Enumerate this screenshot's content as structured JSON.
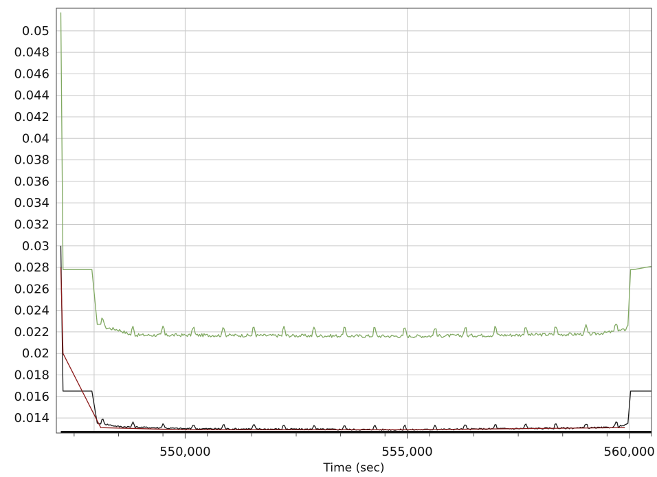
{
  "chart_data": {
    "type": "line",
    "xlabel": "Time (sec)",
    "ylabel": "",
    "xlim": [
      547100,
      560500
    ],
    "ylim": [
      0.0126,
      0.0521
    ],
    "x_ticks": [
      550000,
      555000,
      560000
    ],
    "x_tick_labels": [
      "550,000",
      "555,000",
      "560,000"
    ],
    "x_gridlines": [
      547950,
      550000,
      555000,
      560000
    ],
    "y_ticks": [
      0.014,
      0.016,
      0.018,
      0.02,
      0.022,
      0.024,
      0.026,
      0.028,
      0.03,
      0.032,
      0.034,
      0.036,
      0.038,
      0.04,
      0.042,
      0.044,
      0.046,
      0.048,
      0.05
    ],
    "y_tick_labels": [
      "0.014",
      "0.016",
      "0.018",
      "0.02",
      "0.022",
      "0.024",
      "0.026",
      "0.028",
      "0.03",
      "0.032",
      "0.034",
      "0.036",
      "0.038",
      "0.04",
      "0.042",
      "0.044",
      "0.046",
      "0.048",
      "0.05"
    ],
    "grid": true,
    "colors": {
      "upper": "#7fa860",
      "lower": "#1a1a1a",
      "lower_alt": "#8b1a1a",
      "bottom": "#000000",
      "grid": "#c8c8c8",
      "frame": "#444444"
    },
    "series": [
      {
        "color": "#7fa860",
        "x": [
          547200,
          547250,
          547400,
          547900,
          548020,
          548100,
          548200,
          548500,
          548800,
          550000,
          555000,
          559200,
          559600,
          559900,
          559970,
          560030,
          560100,
          560500
        ],
        "y": [
          0.0517,
          0.0278,
          0.0278,
          0.0278,
          0.0227,
          0.0226,
          0.0224,
          0.0222,
          0.0217,
          0.0217,
          0.0216,
          0.0218,
          0.022,
          0.0222,
          0.0226,
          0.0278,
          0.0278,
          0.0281
        ],
        "noise": {
          "x_start": 548100,
          "x_end": 559950,
          "amplitude": 0.0003,
          "bumps_every": 680,
          "bump_height": 0.0008
        }
      },
      {
        "color": "#1a1a1a",
        "x": [
          547200,
          547250,
          547400,
          547900,
          548020,
          548100,
          548500,
          550000,
          555000,
          559500,
          559900,
          559970,
          560030,
          560100,
          560500
        ],
        "y": [
          0.03,
          0.0165,
          0.0165,
          0.0165,
          0.0135,
          0.0135,
          0.0132,
          0.013,
          0.0129,
          0.0131,
          0.0133,
          0.0135,
          0.0165,
          0.0165,
          0.0165
        ],
        "noise": {
          "x_start": 548100,
          "x_end": 559950,
          "amplitude": 0.00015,
          "bumps_every": 680,
          "bump_height": 0.0004
        }
      },
      {
        "color": "#8b1a1a",
        "x": [
          547200,
          547250,
          548100,
          550000,
          555000,
          559900
        ],
        "y": [
          0.028,
          0.02,
          0.0131,
          0.0129,
          0.0129,
          0.0131
        ]
      },
      {
        "color": "#000000",
        "x": [
          547200,
          560500
        ],
        "y": [
          0.0127,
          0.0127
        ]
      }
    ]
  }
}
